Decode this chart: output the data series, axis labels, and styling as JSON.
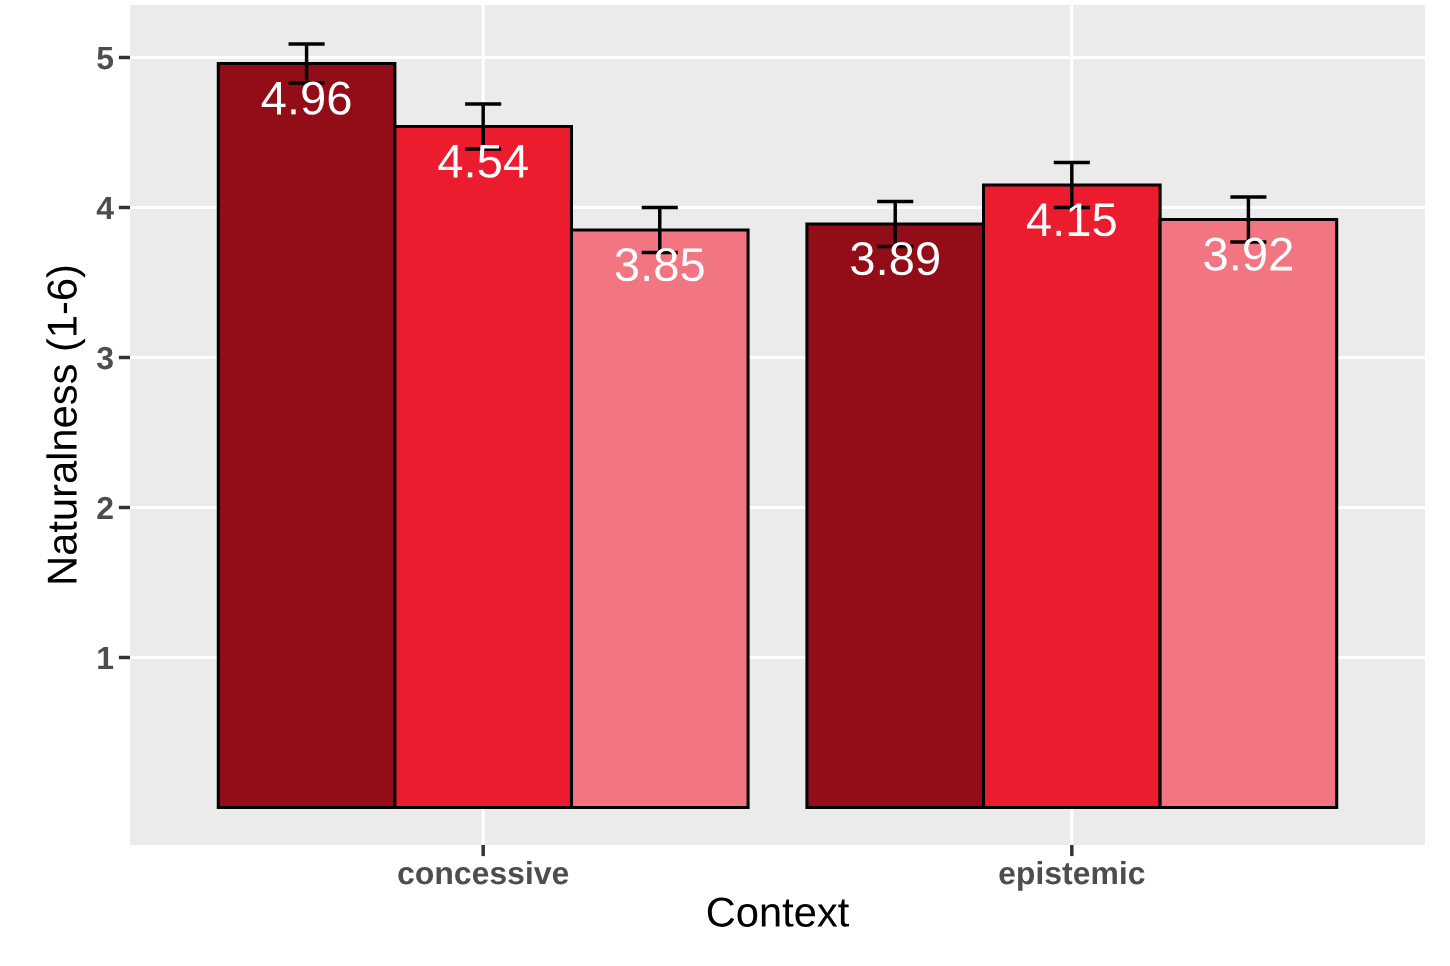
{
  "chart_data": {
    "type": "bar",
    "xlabel": "Context",
    "ylabel": "Naturalness (1-6)",
    "categories": [
      "concessive",
      "epistemic"
    ],
    "series": [
      {
        "color": "#930d19",
        "values": [
          4.96,
          3.89
        ],
        "errors": [
          0.13,
          0.15
        ]
      },
      {
        "color": "#ec1c2f",
        "values": [
          4.54,
          4.15
        ],
        "errors": [
          0.15,
          0.15
        ]
      },
      {
        "color": "#f27681",
        "values": [
          3.85,
          3.92
        ],
        "errors": [
          0.15,
          0.15
        ]
      }
    ],
    "ylim": [
      -0.25,
      5.35
    ],
    "yticks": [
      1,
      2,
      3,
      4,
      5
    ],
    "grid": true,
    "data_labels": true
  }
}
